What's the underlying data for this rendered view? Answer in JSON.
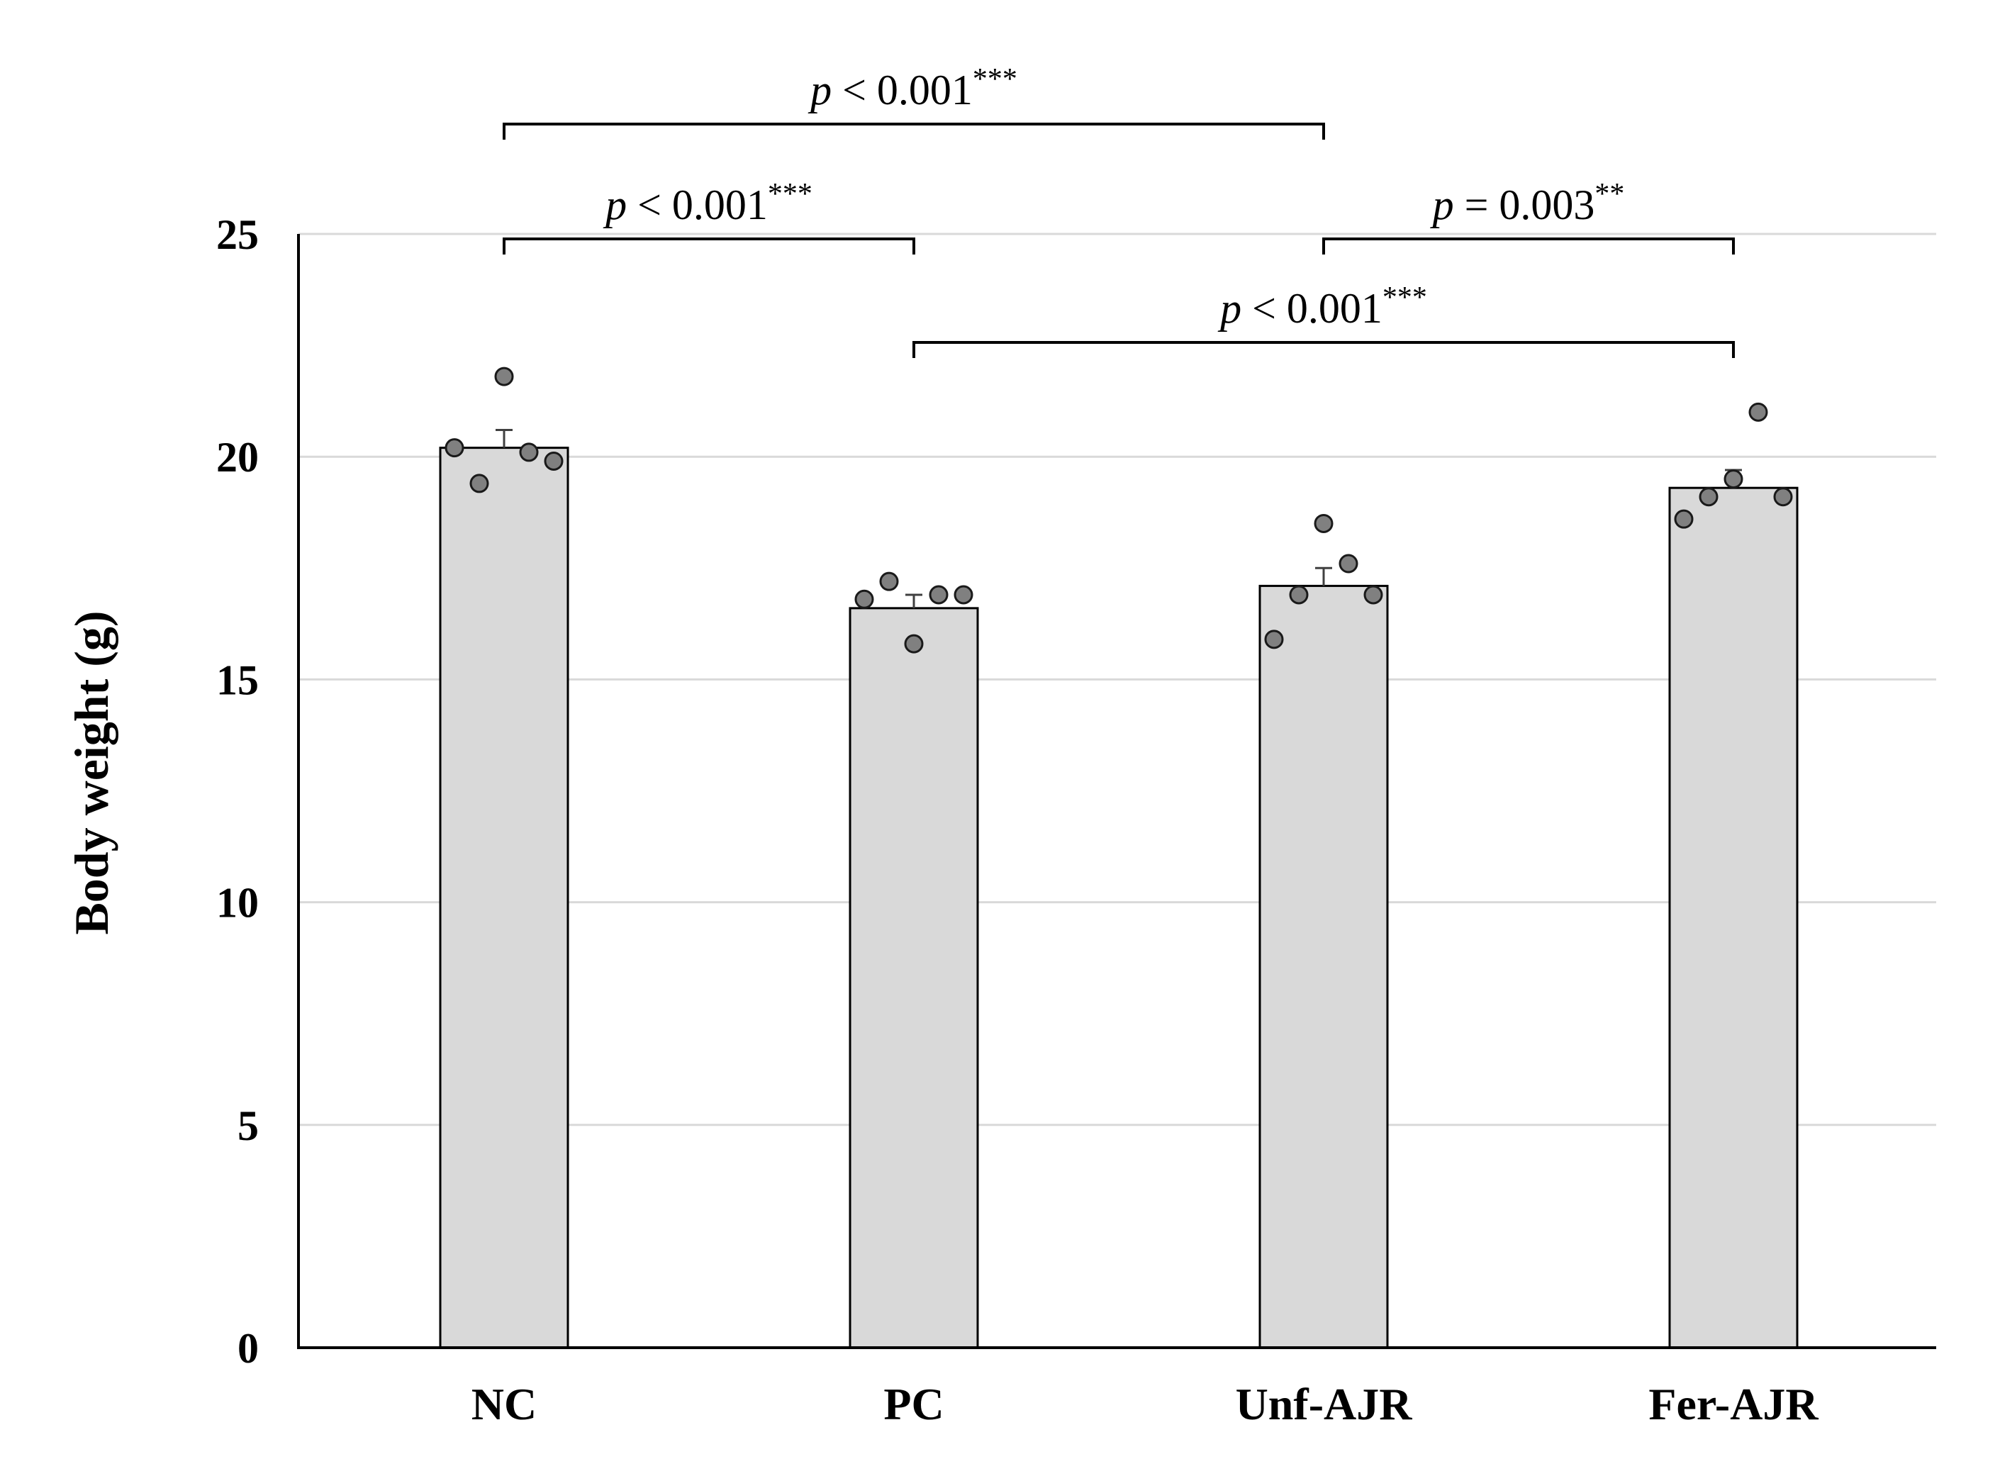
{
  "chart_data": {
    "type": "bar",
    "ylabel": "Body weight (g)",
    "xlabel": "",
    "ylim": [
      0,
      25
    ],
    "y_ticks": [
      0,
      5,
      10,
      15,
      20,
      25
    ],
    "grid": true,
    "categories": [
      "NC",
      "PC",
      "Unf-AJR",
      "Fer-AJR"
    ],
    "values": [
      20.2,
      16.6,
      17.1,
      19.3
    ],
    "errors": [
      0.4,
      0.3,
      0.4,
      0.4
    ],
    "points": [
      [
        20.2,
        19.4,
        21.8,
        20.1,
        19.9
      ],
      [
        16.8,
        17.2,
        15.8,
        16.9,
        16.9
      ],
      [
        15.9,
        16.9,
        18.5,
        17.6,
        16.9
      ],
      [
        18.6,
        19.1,
        19.5,
        21.0,
        19.1
      ]
    ],
    "colors": {
      "bar": "#d9d9d9",
      "point": "#808080",
      "grid": "#d9d9d9"
    },
    "comparisons": [
      {
        "from": "NC",
        "to": "Unf-AJR",
        "p_symbol": "p",
        "relation": "< 0.001",
        "stars": "***"
      },
      {
        "from": "NC",
        "to": "PC",
        "p_symbol": "p",
        "relation": "< 0.001",
        "stars": "***"
      },
      {
        "from": "Unf-AJR",
        "to": "Fer-AJR",
        "p_symbol": "p",
        "relation": "= 0.003",
        "stars": "**"
      },
      {
        "from": "PC",
        "to": "Fer-AJR",
        "p_symbol": "p",
        "relation": "< 0.001",
        "stars": "***"
      }
    ]
  }
}
